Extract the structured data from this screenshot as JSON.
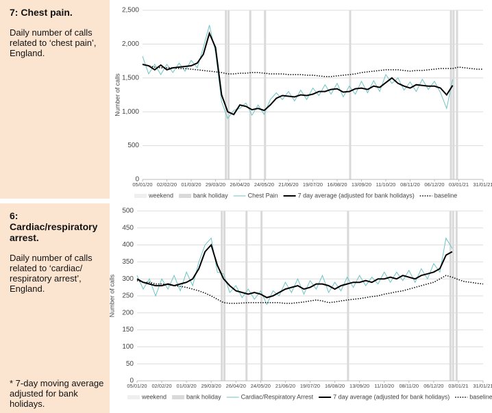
{
  "chart_data": [
    {
      "type": "line",
      "title": "7: Chest pain.",
      "subtitle": "Daily number of calls related to ‘chest pain’, England.",
      "y_label": "Number of calls",
      "x": [
        "05/01/20",
        "12/01/20",
        "19/01/20",
        "26/01/20",
        "02/02/20",
        "09/02/20",
        "16/02/20",
        "23/02/20",
        "01/03/20",
        "08/03/20",
        "15/03/20",
        "22/03/20",
        "29/03/20",
        "05/04/20",
        "12/04/20",
        "19/04/20",
        "26/04/20",
        "03/05/20",
        "10/05/20",
        "17/05/20",
        "24/05/20",
        "31/05/20",
        "07/06/20",
        "14/06/20",
        "21/06/20",
        "28/06/20",
        "05/07/20",
        "12/07/20",
        "19/07/20",
        "26/07/20",
        "02/08/20",
        "09/08/20",
        "16/08/20",
        "23/08/20",
        "30/08/20",
        "06/09/20",
        "13/09/20",
        "20/09/20",
        "27/09/20",
        "04/10/20",
        "11/10/20",
        "18/10/20",
        "25/10/20",
        "01/11/20",
        "08/11/20",
        "15/11/20",
        "22/11/20",
        "29/11/20",
        "06/12/20",
        "13/12/20",
        "20/12/20",
        "27/12/20",
        "03/01/21",
        "10/01/21",
        "17/01/21",
        "24/01/21",
        "31/01/21"
      ],
      "xlim": [
        "05/01/20",
        "31/01/21"
      ],
      "xticks": [
        "05/01/20",
        "02/02/20",
        "01/03/20",
        "29/03/20",
        "26/04/20",
        "24/05/20",
        "21/06/20",
        "19/07/20",
        "16/08/20",
        "13/09/20",
        "11/10/20",
        "08/11/20",
        "06/12/20",
        "03/01/21",
        "31/01/21"
      ],
      "ylim": [
        0,
        2500
      ],
      "yticks": [
        0,
        500,
        {
          "value": 1000,
          "label": "1,000"
        },
        {
          "value": 1500,
          "label": "1,500"
        },
        {
          "value": 2000,
          "label": "2,000"
        },
        {
          "value": 2500,
          "label": "2,500"
        }
      ],
      "grid": true,
      "bank_holidays": [
        "10/04/20",
        "13/04/20",
        "08/05/20",
        "25/05/20",
        "31/08/20",
        "25/12/20",
        "28/12/20",
        "01/01/21"
      ],
      "shading_legend": [
        {
          "name": "weekend",
          "color": "#efefef"
        },
        {
          "name": "bank holiday",
          "color": "#d9d9d9"
        }
      ],
      "series": [
        {
          "name": "Chest Pain",
          "color": "#6cc3c3",
          "width": 1,
          "values": [
            1820,
            1560,
            1700,
            1550,
            1700,
            1580,
            1720,
            1600,
            1760,
            1650,
            1950,
            2280,
            1880,
            1150,
            900,
            1020,
            1050,
            1130,
            950,
            1100,
            960,
            1180,
            1280,
            1180,
            1300,
            1160,
            1320,
            1180,
            1350,
            1240,
            1400,
            1260,
            1420,
            1220,
            1380,
            1260,
            1450,
            1280,
            1460,
            1300,
            1550,
            1420,
            1500,
            1320,
            1440,
            1300,
            1480,
            1330,
            1450,
            1280,
            1050,
            1480,
            null,
            null,
            null,
            null,
            null
          ]
        },
        {
          "name": "7 day average (adjusted for bank holidays)",
          "color": "#000000",
          "width": 2,
          "values": [
            1700,
            1680,
            1620,
            1690,
            1620,
            1650,
            1660,
            1670,
            1680,
            1720,
            1850,
            2160,
            1950,
            1250,
            1000,
            960,
            1100,
            1080,
            1030,
            1050,
            1020,
            1100,
            1200,
            1240,
            1230,
            1220,
            1250,
            1240,
            1260,
            1300,
            1300,
            1330,
            1340,
            1290,
            1300,
            1340,
            1350,
            1330,
            1380,
            1360,
            1430,
            1500,
            1420,
            1380,
            1350,
            1400,
            1390,
            1380,
            1380,
            1350,
            1250,
            1390,
            null,
            null,
            null,
            null,
            null
          ]
        },
        {
          "name": "baseline",
          "color": "#000000",
          "width": 1.5,
          "line_style": "dotted",
          "values": [
            1700,
            1680,
            1660,
            1650,
            1650,
            1650,
            1640,
            1640,
            1630,
            1620,
            1610,
            1600,
            1590,
            1580,
            1560,
            1560,
            1570,
            1570,
            1580,
            1580,
            1570,
            1560,
            1560,
            1560,
            1550,
            1550,
            1550,
            1540,
            1540,
            1530,
            1520,
            1520,
            1530,
            1540,
            1550,
            1560,
            1580,
            1590,
            1600,
            1610,
            1620,
            1620,
            1620,
            1610,
            1600,
            1610,
            1610,
            1620,
            1630,
            1640,
            1640,
            1640,
            1660,
            1650,
            1640,
            1630,
            1630
          ]
        }
      ]
    },
    {
      "type": "line",
      "title": "6: Cardiac/respiratory arrest.",
      "subtitle": "Daily number of calls related to ‘cardiac/ respiratory arrest’, England.",
      "y_label": "Number of calls",
      "x": [
        "05/01/20",
        "12/01/20",
        "19/01/20",
        "26/01/20",
        "02/02/20",
        "09/02/20",
        "16/02/20",
        "23/02/20",
        "01/03/20",
        "08/03/20",
        "15/03/20",
        "22/03/20",
        "29/03/20",
        "05/04/20",
        "12/04/20",
        "19/04/20",
        "26/04/20",
        "03/05/20",
        "10/05/20",
        "17/05/20",
        "24/05/20",
        "31/05/20",
        "07/06/20",
        "14/06/20",
        "21/06/20",
        "28/06/20",
        "05/07/20",
        "12/07/20",
        "19/07/20",
        "26/07/20",
        "02/08/20",
        "09/08/20",
        "16/08/20",
        "23/08/20",
        "30/08/20",
        "06/09/20",
        "13/09/20",
        "20/09/20",
        "27/09/20",
        "04/10/20",
        "11/10/20",
        "18/10/20",
        "25/10/20",
        "01/11/20",
        "08/11/20",
        "15/11/20",
        "22/11/20",
        "29/11/20",
        "06/12/20",
        "13/12/20",
        "20/12/20",
        "27/12/20",
        "03/01/21",
        "10/01/21",
        "17/01/21",
        "24/01/21",
        "31/01/21"
      ],
      "xlim": [
        "05/01/20",
        "31/01/21"
      ],
      "xticks": [
        "05/01/20",
        "02/02/20",
        "01/03/20",
        "29/03/20",
        "26/04/20",
        "24/05/20",
        "21/06/20",
        "19/07/20",
        "16/08/20",
        "13/09/20",
        "11/10/20",
        "08/11/20",
        "06/12/20",
        "03/01/21",
        "31/01/21"
      ],
      "ylim": [
        0,
        500
      ],
      "yticks": [
        0,
        50,
        100,
        150,
        200,
        250,
        300,
        350,
        400,
        450,
        500
      ],
      "grid": true,
      "bank_holidays": [
        "10/04/20",
        "13/04/20",
        "08/05/20",
        "25/05/20",
        "31/08/20",
        "25/12/20",
        "28/12/20",
        "01/01/21"
      ],
      "shading_legend": [
        {
          "name": "weekend",
          "color": "#efefef"
        },
        {
          "name": "bank holiday",
          "color": "#d9d9d9"
        }
      ],
      "series": [
        {
          "name": "Cardiac/Respiratory Arrest",
          "color": "#6cc3c3",
          "width": 1,
          "values": [
            310,
            270,
            300,
            250,
            300,
            270,
            310,
            265,
            320,
            280,
            350,
            400,
            420,
            320,
            315,
            260,
            280,
            245,
            270,
            240,
            265,
            225,
            265,
            250,
            290,
            260,
            300,
            255,
            295,
            270,
            310,
            260,
            290,
            265,
            305,
            275,
            310,
            280,
            305,
            285,
            320,
            290,
            320,
            295,
            325,
            290,
            330,
            300,
            345,
            320,
            420,
            390,
            null,
            null,
            null,
            null,
            null
          ]
        },
        {
          "name": "7 day average (adjusted for bank holidays)",
          "color": "#000000",
          "width": 2,
          "values": [
            300,
            290,
            285,
            280,
            280,
            285,
            280,
            285,
            290,
            300,
            330,
            380,
            400,
            340,
            300,
            280,
            265,
            260,
            255,
            260,
            255,
            245,
            250,
            260,
            270,
            275,
            280,
            270,
            275,
            285,
            285,
            280,
            270,
            280,
            285,
            290,
            290,
            295,
            290,
            300,
            300,
            305,
            300,
            310,
            305,
            300,
            310,
            315,
            320,
            330,
            370,
            380,
            null,
            null,
            null,
            null,
            null
          ]
        },
        {
          "name": "baseline",
          "color": "#000000",
          "width": 1.5,
          "line_style": "dotted",
          "values": [
            295,
            290,
            290,
            285,
            285,
            283,
            280,
            278,
            275,
            270,
            265,
            258,
            250,
            240,
            230,
            228,
            228,
            229,
            230,
            230,
            230,
            230,
            230,
            230,
            228,
            228,
            230,
            232,
            235,
            238,
            235,
            230,
            232,
            235,
            238,
            240,
            242,
            245,
            248,
            250,
            255,
            258,
            262,
            265,
            270,
            275,
            280,
            285,
            290,
            300,
            310,
            305,
            298,
            292,
            290,
            287,
            285
          ]
        }
      ]
    }
  ],
  "footnote": "* 7-day moving average adjusted for bank holidays."
}
